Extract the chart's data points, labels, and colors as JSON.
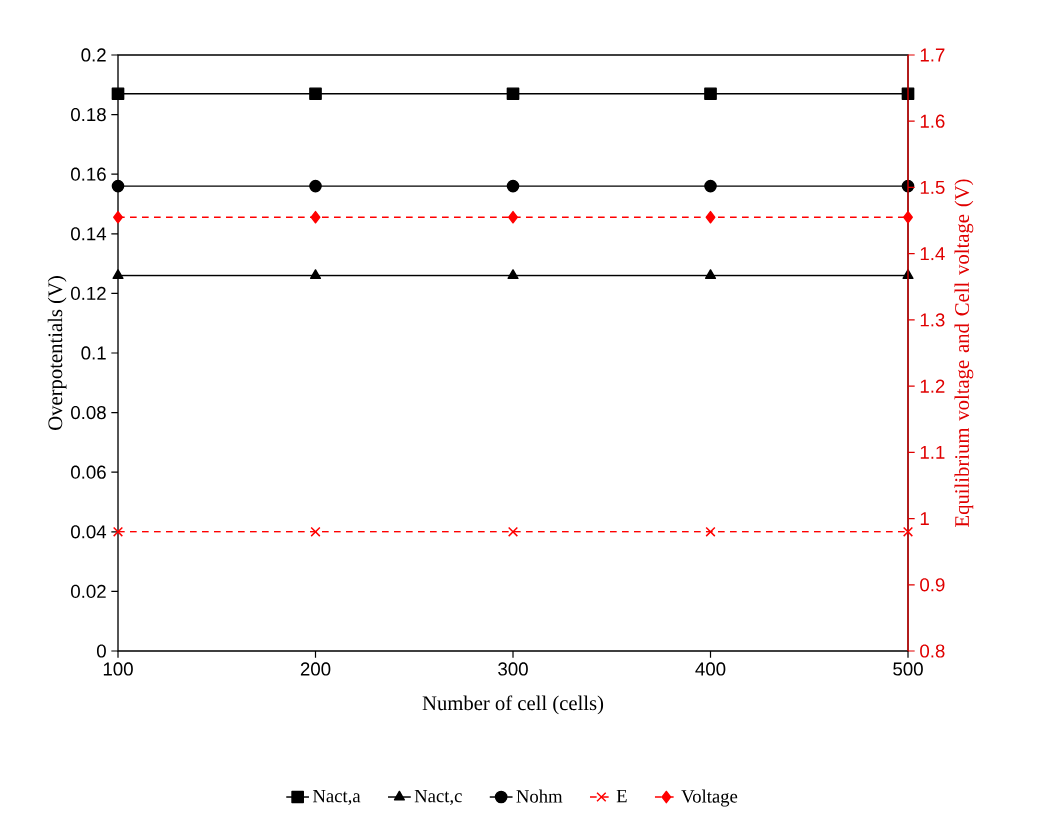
{
  "chart_data": {
    "type": "line",
    "xlabel": "Number of cell (cells)",
    "ylabel": "Overpotentials (V)",
    "y2label": "Equilibrium voltage and Cell voltage (V)",
    "x": [
      100,
      200,
      300,
      400,
      500
    ],
    "xlim": [
      100,
      500
    ],
    "xticks": [
      100,
      200,
      300,
      400,
      500
    ],
    "ylim": [
      0,
      0.2
    ],
    "yticks": [
      0,
      0.02,
      0.04,
      0.06,
      0.08,
      0.1,
      0.12,
      0.14,
      0.16,
      0.18,
      0.2
    ],
    "y2lim": [
      0.8,
      1.7
    ],
    "y2ticks": [
      0.8,
      0.9,
      1,
      1.1,
      1.2,
      1.3,
      1.4,
      1.5,
      1.6,
      1.7
    ],
    "grid": false,
    "legend": "bottom",
    "series": [
      {
        "name": "Nact,a",
        "color": "#000000",
        "marker": "square",
        "line_style": "solid",
        "values": [
          0.187,
          0.187,
          0.187,
          0.187,
          0.187
        ]
      },
      {
        "name": "Nact,c",
        "color": "#000000",
        "marker": "triangle",
        "line_style": "solid",
        "values": [
          0.126,
          0.126,
          0.126,
          0.126,
          0.126
        ]
      },
      {
        "name": "Nohm",
        "color": "#000000",
        "marker": "circle",
        "line_style": "solid",
        "values": [
          0.156,
          0.156,
          0.156,
          0.156,
          0.156
        ]
      },
      {
        "name": "E",
        "color": "#ff0000",
        "marker": "cross",
        "line_style": "dashed",
        "axis": "y2",
        "values": [
          0.98,
          0.98,
          0.98,
          0.98,
          0.98
        ]
      },
      {
        "name": "Voltage",
        "color": "#ff0000",
        "marker": "diamond",
        "line_style": "dashed",
        "axis": "y2",
        "values": [
          1.455,
          1.455,
          1.455,
          1.455,
          1.455
        ]
      }
    ]
  }
}
